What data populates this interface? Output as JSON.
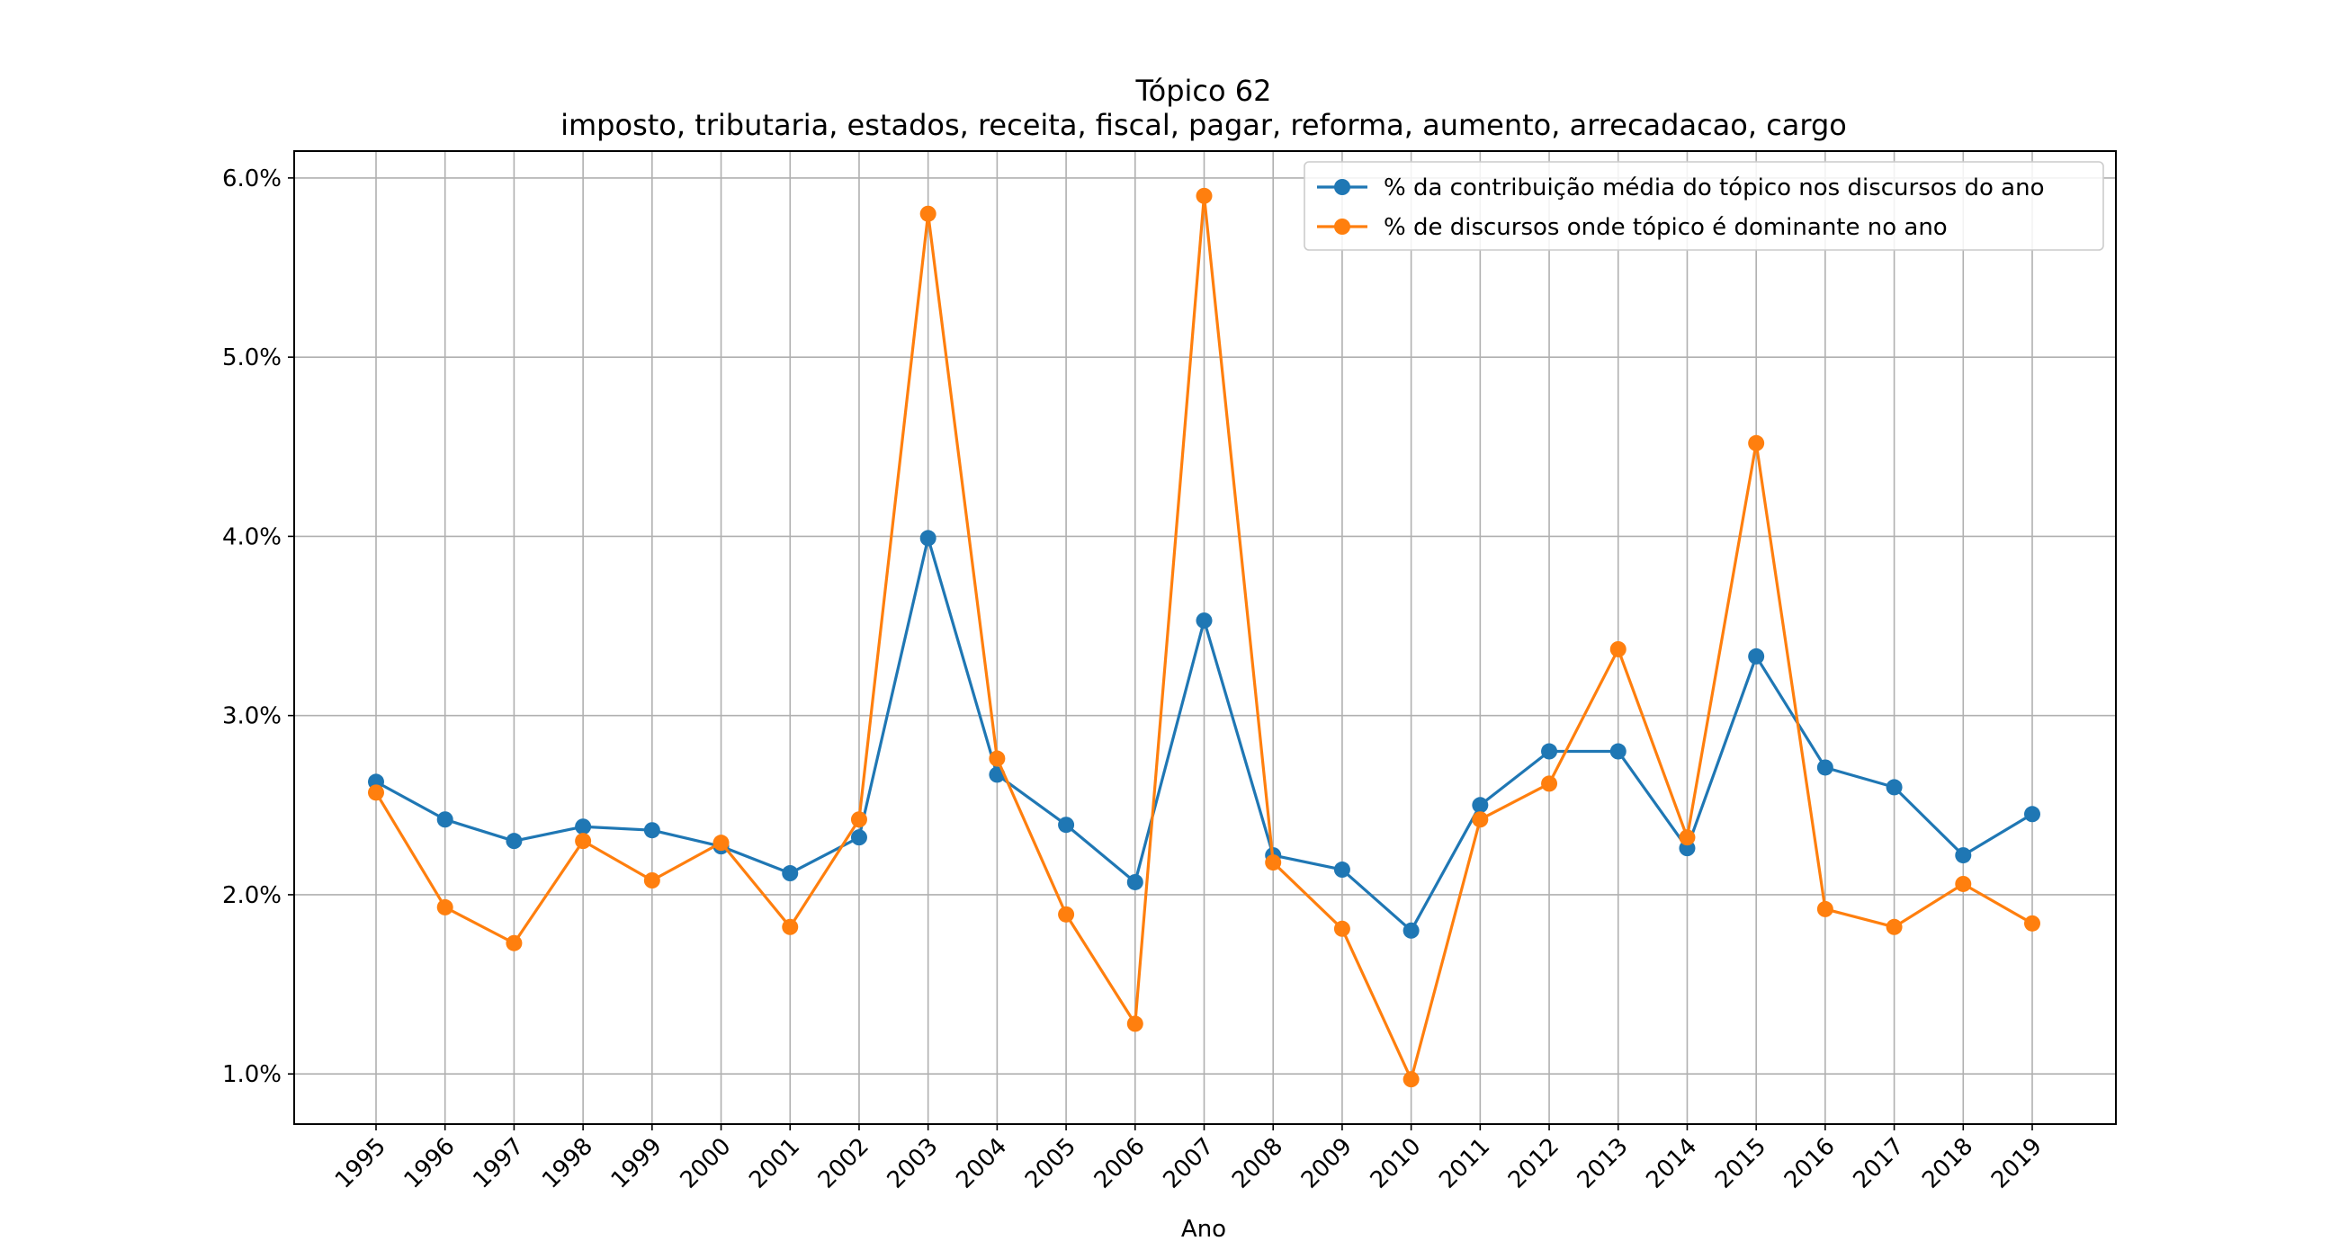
{
  "chart_data": {
    "type": "line",
    "title": "Tópico 62",
    "subtitle": "imposto, tributaria, estados, receita, fiscal, pagar, reforma, aumento, arrecadacao, cargo",
    "xlabel": "Ano",
    "ylabel": "",
    "x": [
      "1995",
      "1996",
      "1997",
      "1998",
      "1999",
      "2000",
      "2001",
      "2002",
      "2003",
      "2004",
      "2005",
      "2006",
      "2007",
      "2008",
      "2009",
      "2010",
      "2011",
      "2012",
      "2013",
      "2014",
      "2015",
      "2016",
      "2017",
      "2018",
      "2019"
    ],
    "yticks": [
      "1.0%",
      "2.0%",
      "3.0%",
      "4.0%",
      "5.0%",
      "6.0%"
    ],
    "ytick_values": [
      1.0,
      2.0,
      3.0,
      4.0,
      5.0,
      6.0
    ],
    "ylim": [
      0.72,
      6.15
    ],
    "grid": true,
    "legend_position": "top-right",
    "series": [
      {
        "name": "% da contribuição média do tópico nos discursos do ano",
        "color": "#1f77b4",
        "values": [
          2.63,
          2.42,
          2.3,
          2.38,
          2.36,
          2.27,
          2.12,
          2.32,
          3.99,
          2.67,
          2.39,
          2.07,
          3.53,
          2.22,
          2.14,
          1.8,
          2.5,
          2.8,
          2.8,
          2.26,
          3.33,
          2.71,
          2.6,
          2.22,
          2.45
        ]
      },
      {
        "name": "% de discursos onde tópico é dominante no ano",
        "color": "#ff7f0e",
        "values": [
          2.57,
          1.93,
          1.73,
          2.3,
          2.08,
          2.29,
          1.82,
          2.42,
          5.8,
          2.76,
          1.89,
          1.28,
          5.9,
          2.18,
          1.81,
          0.97,
          2.42,
          2.62,
          3.37,
          2.32,
          4.52,
          1.92,
          1.82,
          2.06,
          1.84
        ]
      }
    ]
  }
}
